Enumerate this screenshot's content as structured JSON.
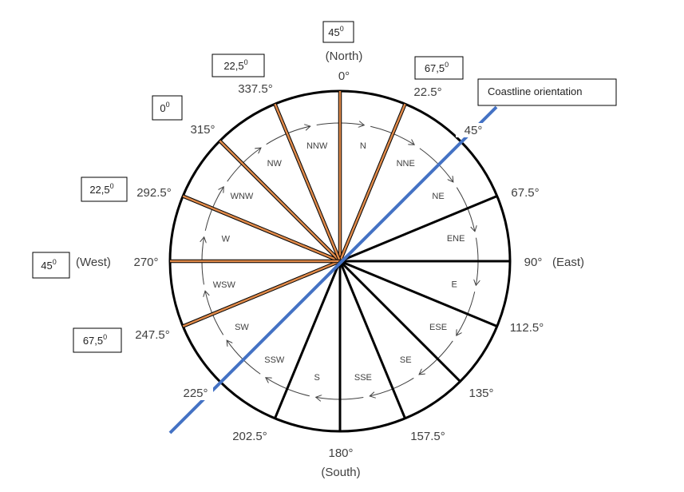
{
  "diagram": {
    "degree_labels": [
      {
        "text": "0°",
        "name": "deg-0-label"
      },
      {
        "text": "22.5°",
        "name": "deg-22-5-label"
      },
      {
        "text": "45°",
        "name": "deg-45-label"
      },
      {
        "text": "67.5°",
        "name": "deg-67-5-label"
      },
      {
        "text": "90°",
        "name": "deg-90-label"
      },
      {
        "text": "112.5°",
        "name": "deg-112-5-label"
      },
      {
        "text": "135°",
        "name": "deg-135-label"
      },
      {
        "text": "157.5°",
        "name": "deg-157-5-label"
      },
      {
        "text": "180°",
        "name": "deg-180-label"
      },
      {
        "text": "202.5°",
        "name": "deg-202-5-label"
      },
      {
        "text": "225°",
        "name": "deg-225-label"
      },
      {
        "text": "247.5°",
        "name": "deg-247-5-label"
      },
      {
        "text": "270°",
        "name": "deg-270-label"
      },
      {
        "text": "292.5°",
        "name": "deg-292-5-label"
      },
      {
        "text": "315°",
        "name": "deg-315-label"
      },
      {
        "text": "337.5°",
        "name": "deg-337-5-label"
      }
    ],
    "cardinal_labels": {
      "north": "(North)",
      "east": "(East)",
      "south": "(South)",
      "west": "(West)"
    },
    "sector_labels": [
      "N",
      "NNE",
      "NE",
      "ENE",
      "E",
      "ESE",
      "SE",
      "SSE",
      "S",
      "SSW",
      "SW",
      "WSW",
      "W",
      "WNW",
      "NW",
      "NNW"
    ],
    "coastline_label": "Coastline orientation",
    "angle_boxes": [
      {
        "value": "45",
        "sup": "0",
        "name": "angle-box-north"
      },
      {
        "value": "22,5",
        "sup": "0",
        "name": "angle-box-nnw"
      },
      {
        "value": "67,5",
        "sup": "0",
        "name": "angle-box-nne"
      },
      {
        "value": "0",
        "sup": "0",
        "name": "angle-box-nw"
      },
      {
        "value": "22,5",
        "sup": "0",
        "name": "angle-box-wnw"
      },
      {
        "value": "45",
        "sup": "0",
        "name": "angle-box-west"
      },
      {
        "value": "67,5",
        "sup": "0",
        "name": "angle-box-wsw"
      }
    ],
    "colors": {
      "circle": "#000000",
      "black_lines": "#000000",
      "orange_lines": "#e08a4a",
      "coastline": "#4472c4",
      "arrows": "#404040",
      "text": "#404040"
    }
  }
}
